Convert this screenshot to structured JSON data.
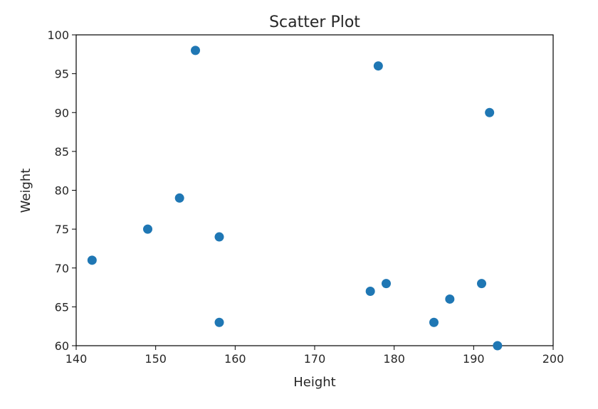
{
  "chart_data": {
    "type": "scatter",
    "title": "Scatter Plot",
    "xlabel": "Height",
    "ylabel": "Weight",
    "xlim": [
      140,
      200
    ],
    "ylim": [
      60,
      100
    ],
    "xticks": [
      "140",
      "150",
      "160",
      "170",
      "180",
      "190",
      "200"
    ],
    "yticks": [
      "60",
      "65",
      "70",
      "75",
      "80",
      "85",
      "90",
      "95",
      "100"
    ],
    "grid": false,
    "legend": "none",
    "marker_color": "#1f77b4",
    "points": [
      {
        "x": 142,
        "y": 71
      },
      {
        "x": 149,
        "y": 75
      },
      {
        "x": 153,
        "y": 79
      },
      {
        "x": 155,
        "y": 98
      },
      {
        "x": 158,
        "y": 74
      },
      {
        "x": 158,
        "y": 63
      },
      {
        "x": 177,
        "y": 67
      },
      {
        "x": 178,
        "y": 96
      },
      {
        "x": 179,
        "y": 68
      },
      {
        "x": 185,
        "y": 63
      },
      {
        "x": 187,
        "y": 66
      },
      {
        "x": 191,
        "y": 68
      },
      {
        "x": 192,
        "y": 90
      },
      {
        "x": 193,
        "y": 60
      }
    ]
  }
}
